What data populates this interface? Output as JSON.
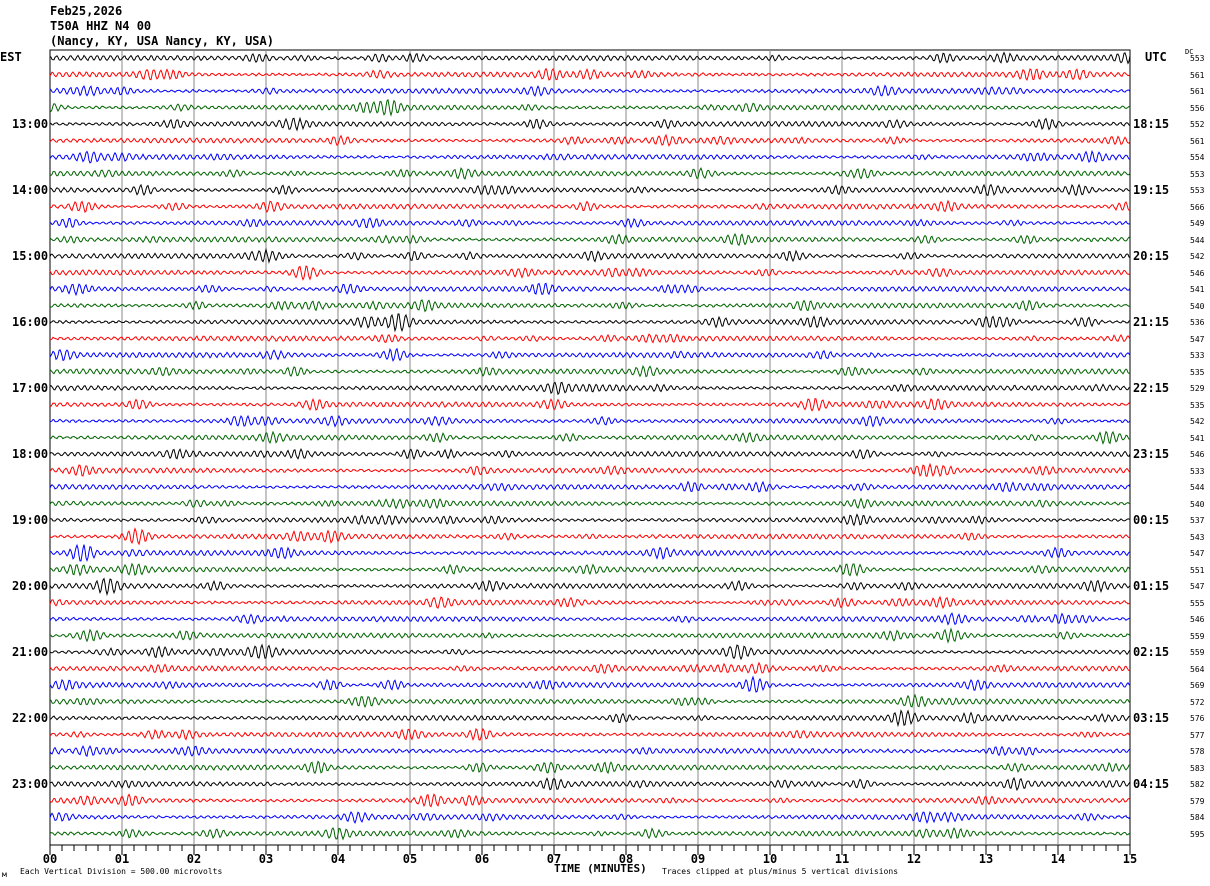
{
  "header": {
    "date": "Feb25,2026",
    "station": "T50A HHZ N4 00",
    "location": "(Nancy, KY, USA Nancy, KY, USA)"
  },
  "left_timezone": "EST",
  "right_timezone": "UTC",
  "dc_label": "DC",
  "footer": {
    "scale": "Each Vertical Division =  500.00 microvolts",
    "xlabel": "TIME (MINUTES)",
    "clip_note": "Traces clipped at plus/minus 5 vertical divisions",
    "corner_mark": "м"
  },
  "chart_data": {
    "type": "line",
    "subtype": "helicorder",
    "xlabel": "TIME (MINUTES)",
    "xlim": [
      0,
      15
    ],
    "x_ticks": [
      "00",
      "01",
      "02",
      "03",
      "04",
      "05",
      "06",
      "07",
      "08",
      "09",
      "10",
      "11",
      "12",
      "13",
      "14",
      "15"
    ],
    "grid": "vertical lines each minute",
    "trace_colors": [
      "#000000",
      "#ff0000",
      "#0000ff",
      "#006400"
    ],
    "traces_per_hour": 4,
    "left_hour_labels": [
      "13:00",
      "14:00",
      "15:00",
      "16:00",
      "17:00",
      "18:00",
      "19:00",
      "20:00",
      "21:00",
      "22:00",
      "23:00"
    ],
    "right_hour_labels": [
      "18:15",
      "19:15",
      "20:15",
      "21:15",
      "22:15",
      "23:15",
      "00:15",
      "01:15",
      "02:15",
      "03:15",
      "04:15"
    ],
    "dc_offsets": [
      553,
      561,
      561,
      556,
      552,
      561,
      554,
      553,
      553,
      566,
      549,
      544,
      542,
      546,
      541,
      540,
      536,
      547,
      533,
      535,
      529,
      535,
      542,
      541,
      546,
      533,
      544,
      540,
      537,
      543,
      547,
      551,
      547,
      555,
      546,
      559,
      559,
      564,
      569,
      572,
      576,
      577,
      578,
      583,
      582,
      579,
      584,
      595
    ]
  }
}
